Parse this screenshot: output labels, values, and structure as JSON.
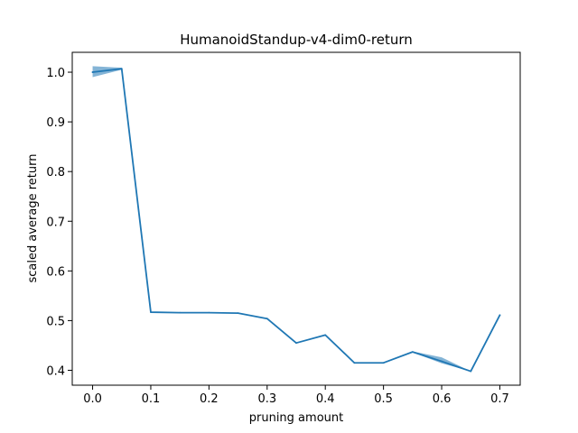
{
  "chart_data": {
    "type": "line",
    "title": "HumanoidStandup-v4-dim0-return",
    "xlabel": "pruning amount",
    "ylabel": "scaled average return",
    "xlim": [
      -0.035,
      0.735
    ],
    "ylim": [
      0.37,
      1.04
    ],
    "xticks": [
      0.0,
      0.1,
      0.2,
      0.3,
      0.4,
      0.5,
      0.6,
      0.7
    ],
    "xtick_labels": [
      "0.0",
      "0.1",
      "0.2",
      "0.3",
      "0.4",
      "0.5",
      "0.6",
      "0.7"
    ],
    "yticks": [
      0.4,
      0.5,
      0.6,
      0.7,
      0.8,
      0.9,
      1.0
    ],
    "ytick_labels": [
      "0.4",
      "0.5",
      "0.6",
      "0.7",
      "0.8",
      "0.9",
      "1.0"
    ],
    "grid": false,
    "legend": false,
    "series": [
      {
        "color": "#1f77b4",
        "band_color": "#1f77b4",
        "x": [
          0.0,
          0.05,
          0.1,
          0.15,
          0.2,
          0.25,
          0.3,
          0.35,
          0.4,
          0.45,
          0.5,
          0.55,
          0.6,
          0.65,
          0.7
        ],
        "y": [
          1.0,
          1.007,
          0.517,
          0.516,
          0.516,
          0.515,
          0.504,
          0.455,
          0.471,
          0.415,
          0.415,
          0.437,
          0.418,
          0.398,
          0.511
        ],
        "lower": [
          0.99,
          1.005,
          0.517,
          0.516,
          0.516,
          0.515,
          0.504,
          0.455,
          0.471,
          0.415,
          0.415,
          0.436,
          0.414,
          0.398,
          0.511
        ],
        "upper": [
          1.012,
          1.009,
          0.517,
          0.516,
          0.516,
          0.515,
          0.504,
          0.455,
          0.471,
          0.415,
          0.415,
          0.438,
          0.426,
          0.398,
          0.511
        ]
      }
    ]
  }
}
